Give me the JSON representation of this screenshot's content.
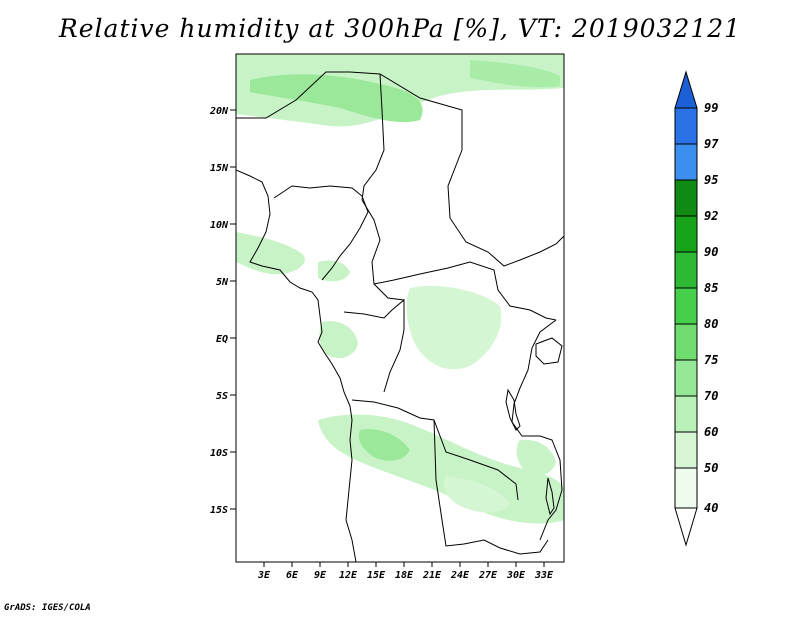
{
  "title": "Relative humidity at 300hPa [%], VT: 2019032121",
  "credit": "GrADS: IGES/COLA",
  "map": {
    "lat_ticks": [
      "20N",
      "15N",
      "10N",
      "5N",
      "EQ",
      "5S",
      "10S",
      "15S"
    ],
    "lon_ticks": [
      "3E",
      "6E",
      "9E",
      "12E",
      "15E",
      "18E",
      "21E",
      "24E",
      "27E",
      "30E",
      "33E"
    ],
    "region": "Central Africa",
    "lon_range": [
      0,
      35
    ],
    "lat_range": [
      -20,
      25
    ]
  },
  "colorbar": {
    "levels": [
      "99",
      "97",
      "95",
      "92",
      "90",
      "85",
      "80",
      "75",
      "70",
      "60",
      "50",
      "40"
    ],
    "colors": [
      "#1d5fd6",
      "#2a73e6",
      "#3b8fee",
      "#0f8a12",
      "#17a31a",
      "#2db934",
      "#45cf4b",
      "#6fdc70",
      "#95e895",
      "#b9f1b8",
      "#d6f6d4",
      "#eefced"
    ]
  },
  "colors": {
    "frame": "#000000",
    "border": "#000000"
  }
}
